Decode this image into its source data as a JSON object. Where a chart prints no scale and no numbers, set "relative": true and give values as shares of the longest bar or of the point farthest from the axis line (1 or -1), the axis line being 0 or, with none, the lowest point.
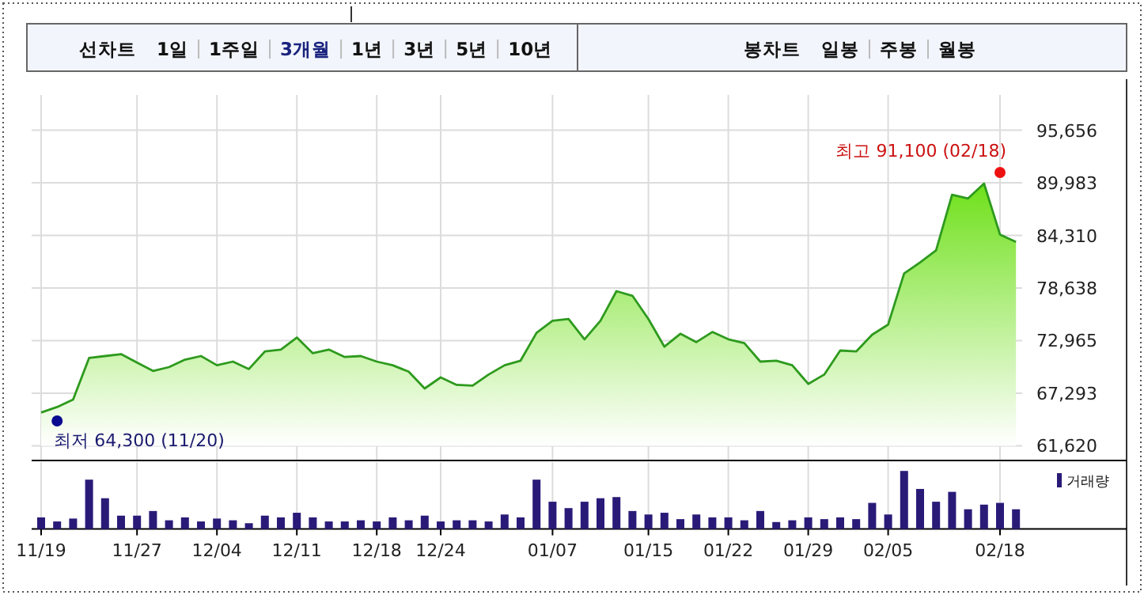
{
  "chart_data": [
    {
      "type": "area",
      "color": "#2e9a1e",
      "categories": [
        "11/19",
        null,
        null,
        null,
        null,
        null,
        "11/27",
        null,
        null,
        null,
        null,
        "12/04",
        null,
        null,
        null,
        null,
        "12/11",
        null,
        null,
        null,
        null,
        "12/18",
        null,
        null,
        null,
        "12/24",
        null,
        null,
        null,
        null,
        null,
        null,
        "01/07",
        null,
        null,
        null,
        null,
        null,
        "01/15",
        null,
        null,
        null,
        null,
        "01/22",
        null,
        null,
        null,
        null,
        "01/29",
        null,
        null,
        null,
        null,
        "02/05",
        null,
        null,
        null,
        null,
        null,
        null,
        "02/18",
        null
      ],
      "values": [
        65200,
        65800,
        66600,
        71100,
        71300,
        71500,
        70600,
        69700,
        70100,
        70900,
        71300,
        70300,
        70700,
        69900,
        71800,
        72000,
        73300,
        71600,
        72000,
        71200,
        71300,
        70700,
        70300,
        69600,
        67800,
        69000,
        68200,
        68100,
        69300,
        70300,
        70800,
        73800,
        75100,
        75300,
        73100,
        75100,
        78300,
        77800,
        75300,
        72300,
        73700,
        72800,
        73900,
        73100,
        72700,
        70700,
        70800,
        70300,
        68300,
        69300,
        71900,
        71800,
        73600,
        74700,
        80200,
        81400,
        82700,
        88700,
        88300,
        89900,
        84400,
        83600
      ],
      "ylim": [
        61620,
        95656
      ],
      "yticks": [
        {
          "value": 61620,
          "label": "61,620"
        },
        {
          "value": 67293,
          "label": "67,293"
        },
        {
          "value": 72965,
          "label": "72,965"
        },
        {
          "value": 78638,
          "label": "78,638"
        },
        {
          "value": 84310,
          "label": "84,310"
        },
        {
          "value": 89983,
          "label": "89,983"
        },
        {
          "value": 95656,
          "label": "95,656"
        }
      ],
      "grid": true,
      "tick_labels": "y",
      "annotations": [
        "선차트",
        "1일",
        "1주일",
        "3개월",
        "1년",
        "3년",
        "5년",
        "10년",
        "봉차트",
        "일봉",
        "주봉",
        "월봉",
        {
          "text": "최고 91,100 (02/18)",
          "x": "02/18",
          "y": 91100
        },
        "최저 64,300 (11/20)"
      ]
    },
    {
      "type": "bar",
      "relative": true,
      "tick_labels": "x",
      "legend": "top right",
      "grid": "x",
      "categories": [
        "11/19",
        null,
        null,
        null,
        null,
        null,
        "11/27",
        null,
        null,
        null,
        null,
        "12/04",
        null,
        null,
        null,
        null,
        "12/11",
        null,
        null,
        null,
        null,
        "12/18",
        null,
        null,
        null,
        "12/24",
        null,
        null,
        null,
        null,
        null,
        null,
        "01/07",
        null,
        null,
        null,
        null,
        null,
        "01/15",
        null,
        null,
        null,
        null,
        "01/22",
        null,
        null,
        null,
        null,
        "01/29",
        null,
        null,
        null,
        null,
        "02/05",
        null,
        null,
        null,
        null,
        null,
        null,
        "02/18",
        null
      ],
      "series": [
        {
          "name": "거래량",
          "color": "#2a1a78",
          "values": [
            0.2,
            0.13,
            0.18,
            0.85,
            0.53,
            0.23,
            0.23,
            0.31,
            0.15,
            0.2,
            0.13,
            0.18,
            0.15,
            0.1,
            0.23,
            0.2,
            0.28,
            0.2,
            0.13,
            0.13,
            0.15,
            0.13,
            0.2,
            0.15,
            0.23,
            0.13,
            0.15,
            0.15,
            0.13,
            0.25,
            0.2,
            0.85,
            0.47,
            0.36,
            0.47,
            0.53,
            0.55,
            0.31,
            0.25,
            0.28,
            0.17,
            0.25,
            0.2,
            0.2,
            0.15,
            0.31,
            0.12,
            0.15,
            0.2,
            0.17,
            0.2,
            0.17,
            0.45,
            0.25,
            1,
            0.69,
            0.47,
            0.64,
            0.34,
            0.42,
            0.45,
            0.34
          ]
        }
      ]
    }
  ]
}
